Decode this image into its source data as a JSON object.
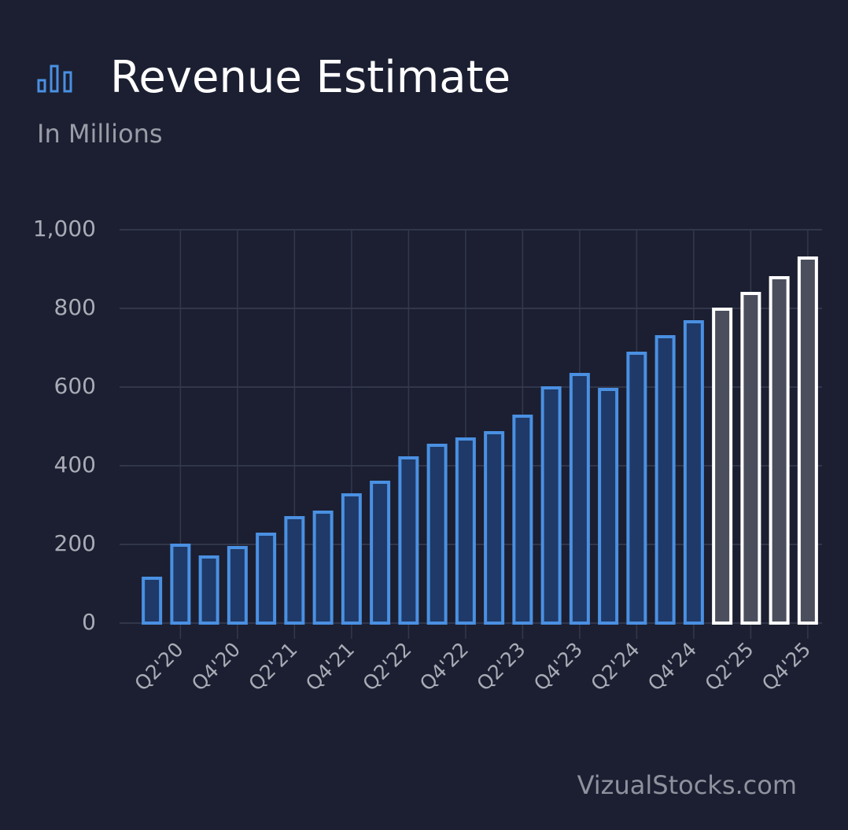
{
  "chart_data": {
    "type": "bar",
    "title": "Revenue Estimate",
    "subtitle": "In Millions",
    "source": "VizualStocks.com",
    "categories": [
      null,
      "Q2'20",
      null,
      "Q4'20",
      null,
      "Q2'21",
      null,
      "Q4'21",
      null,
      "Q2'22",
      null,
      "Q4'22",
      null,
      "Q2'23",
      null,
      "Q4'23",
      null,
      "Q2'24",
      null,
      "Q4'24",
      null,
      "Q2'25",
      null,
      "Q4'25"
    ],
    "values": [
      114,
      198,
      168,
      192,
      226,
      268,
      282,
      326,
      358,
      420,
      452,
      468,
      484,
      526,
      598,
      632,
      594,
      686,
      728,
      766,
      798,
      838,
      878,
      928
    ],
    "colors": [
      "#4a90e2",
      "#4a90e2",
      "#4a90e2",
      "#4a90e2",
      "#4a90e2",
      "#4a90e2",
      "#4a90e2",
      "#4a90e2",
      "#4a90e2",
      "#4a90e2",
      "#4a90e2",
      "#4a90e2",
      "#4a90e2",
      "#4a90e2",
      "#4a90e2",
      "#4a90e2",
      "#4a90e2",
      "#4a90e2",
      "#4a90e2",
      "#4a90e2",
      "#ffffff",
      "#ffffff",
      "#ffffff",
      "#ffffff"
    ],
    "ylim": [
      0,
      1000
    ],
    "yticks": [
      0,
      200,
      400,
      600,
      800,
      {
        "value": 1000,
        "label": "1,000"
      }
    ],
    "grid": true
  }
}
